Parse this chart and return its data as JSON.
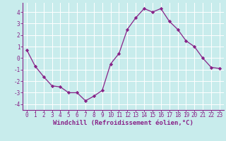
{
  "x": [
    0,
    1,
    2,
    3,
    4,
    5,
    6,
    7,
    8,
    9,
    10,
    11,
    12,
    13,
    14,
    15,
    16,
    17,
    18,
    19,
    20,
    21,
    22,
    23
  ],
  "y": [
    0.7,
    -0.7,
    -1.6,
    -2.4,
    -2.5,
    -3.0,
    -3.0,
    -3.7,
    -3.3,
    -2.8,
    -0.5,
    0.4,
    2.5,
    3.5,
    4.3,
    4.0,
    4.3,
    3.2,
    2.5,
    1.5,
    1.0,
    0.0,
    -0.8,
    -0.9
  ],
  "line_color": "#882288",
  "marker": "D",
  "markersize": 2.2,
  "linewidth": 0.9,
  "bg_color": "#c8ecec",
  "grid_color": "#ffffff",
  "xlabel": "Windchill (Refroidissement éolien,°C)",
  "xlabel_color": "#882288",
  "tick_color": "#882288",
  "axis_color": "#882288",
  "ylim": [
    -4.5,
    4.8
  ],
  "xlim": [
    -0.5,
    23.5
  ],
  "yticks": [
    -4,
    -3,
    -2,
    -1,
    0,
    1,
    2,
    3,
    4
  ],
  "xticks": [
    0,
    1,
    2,
    3,
    4,
    5,
    6,
    7,
    8,
    9,
    10,
    11,
    12,
    13,
    14,
    15,
    16,
    17,
    18,
    19,
    20,
    21,
    22,
    23
  ],
  "tick_fontsize": 5.5,
  "xlabel_fontsize": 6.5
}
